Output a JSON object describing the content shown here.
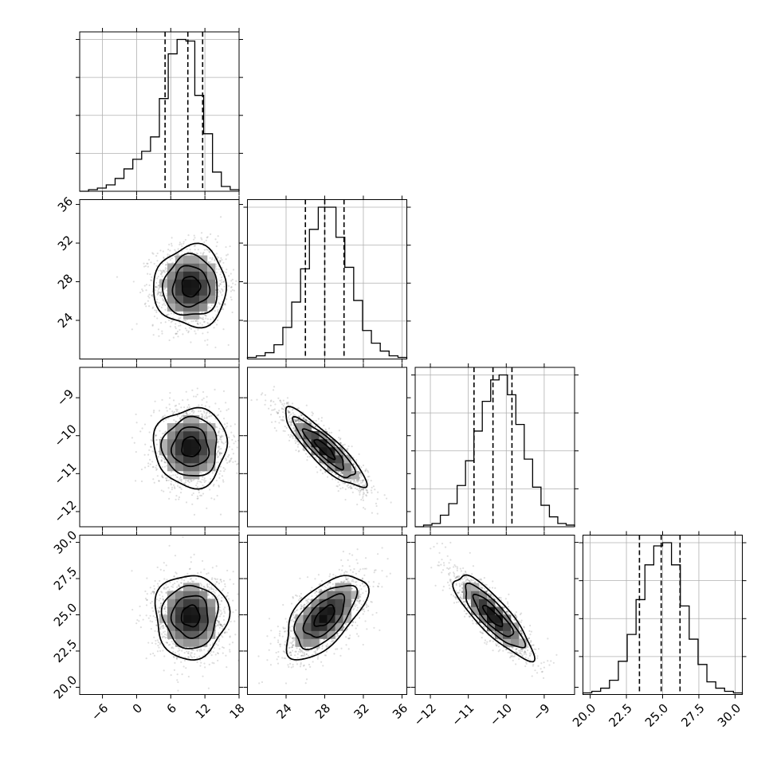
{
  "chart_data": {
    "type": "corner",
    "parameters": [
      {
        "range": [
          -10,
          18
        ],
        "ticks": [
          -6,
          0,
          6,
          12,
          18
        ],
        "tick_labels": [
          "−6",
          "0",
          "6",
          "12",
          "18"
        ],
        "quantiles": [
          5.0,
          9.0,
          11.6
        ],
        "hist": [
          0,
          1,
          2,
          4,
          8,
          14,
          20,
          25,
          34,
          58,
          86,
          95,
          94,
          60,
          36,
          12,
          3,
          1
        ]
      },
      {
        "range": [
          20,
          36.5
        ],
        "ticks": [
          24,
          28,
          32,
          36
        ],
        "tick_labels": [
          "24",
          "28",
          "32",
          "36"
        ],
        "quantiles": [
          26.0,
          28.0,
          30.0
        ],
        "hist": [
          1,
          2,
          4,
          9,
          20,
          36,
          57,
          82,
          96,
          96,
          77,
          58,
          37,
          18,
          10,
          5,
          2,
          1
        ]
      },
      {
        "range": [
          -12.4,
          -8.2
        ],
        "ticks": [
          -12,
          -11,
          -10,
          -9
        ],
        "tick_labels": [
          "−12",
          "−11",
          "−10",
          "−9"
        ],
        "quantiles": [
          -10.85,
          -10.35,
          -9.85
        ],
        "hist": [
          0,
          1,
          2,
          7,
          14,
          25,
          40,
          58,
          76,
          89,
          92,
          80,
          62,
          41,
          24,
          13,
          6,
          2,
          1
        ]
      },
      {
        "range": [
          19.5,
          30.5
        ],
        "ticks": [
          20.0,
          22.5,
          25.0,
          27.5,
          30.0
        ],
        "tick_labels": [
          "20.0",
          "22.5",
          "25.0",
          "27.5",
          "30.0"
        ],
        "quantiles": [
          23.4,
          24.9,
          26.2
        ],
        "hist": [
          1,
          2,
          4,
          9,
          21,
          38,
          60,
          82,
          94,
          96,
          82,
          56,
          35,
          19,
          8,
          4,
          2,
          1
        ]
      }
    ],
    "pairs": [
      {
        "row": 1,
        "col": 0,
        "center": [
          9.5,
          27.5
        ],
        "sd": [
          3.2,
          2.1
        ],
        "corr": 0.0
      },
      {
        "row": 2,
        "col": 0,
        "center": [
          9.5,
          -10.3
        ],
        "sd": [
          3.2,
          0.52
        ],
        "corr": 0.0
      },
      {
        "row": 2,
        "col": 1,
        "center": [
          28.0,
          -10.35
        ],
        "sd": [
          2.1,
          0.52
        ],
        "corr": -0.88
      },
      {
        "row": 3,
        "col": 0,
        "center": [
          9.5,
          24.9
        ],
        "sd": [
          3.2,
          1.45
        ],
        "corr": 0.0
      },
      {
        "row": 3,
        "col": 1,
        "center": [
          28.0,
          24.9
        ],
        "sd": [
          2.1,
          1.45
        ],
        "corr": 0.6
      },
      {
        "row": 3,
        "col": 2,
        "center": [
          -10.35,
          24.9
        ],
        "sd": [
          0.52,
          1.45
        ],
        "corr": -0.85
      }
    ]
  }
}
